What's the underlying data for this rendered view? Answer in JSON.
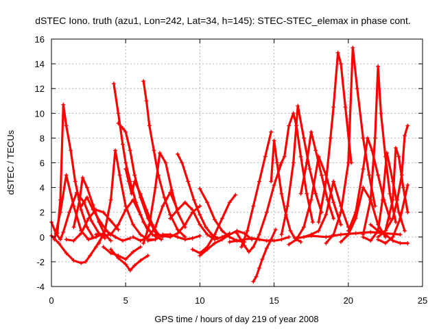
{
  "chart_data": {
    "type": "scatter",
    "title": "dSTEC Iono. truth (azu1, Lon=242, Lat=34, h=145): STEC-STEC_elemax in phase cont.",
    "xlabel": "GPS time / hours of day 219 of year 2008",
    "ylabel": "dSTEC  / TECUs",
    "xlim": [
      0,
      25
    ],
    "ylim": [
      -4,
      16
    ],
    "xticks": [
      0,
      5,
      10,
      15,
      20,
      25
    ],
    "yticks": [
      -4,
      -2,
      0,
      2,
      4,
      6,
      8,
      10,
      12,
      14,
      16
    ],
    "grid": true,
    "marker": "+",
    "color": "#ff0000",
    "series": [
      {
        "x": [
          0.0,
          0.3,
          0.6,
          0.8,
          1.2,
          1.7,
          2.2,
          2.7,
          3.2,
          3.6
        ],
        "y": [
          1.2,
          0.3,
          -0.2,
          0.4,
          2.0,
          3.6,
          2.8,
          1.3,
          0.3,
          -0.1
        ]
      },
      {
        "x": [
          0.4,
          0.6,
          0.8,
          1.0,
          1.3,
          1.6,
          2.0,
          2.4,
          2.8
        ],
        "y": [
          0.3,
          3.0,
          10.7,
          9.0,
          7.0,
          4.5,
          2.2,
          0.8,
          0.0
        ]
      },
      {
        "x": [
          0.0,
          0.5,
          1.0,
          1.5,
          2.0,
          2.3,
          2.6,
          3.0,
          3.5
        ],
        "y": [
          0.1,
          -0.5,
          -1.3,
          -1.9,
          -2.1,
          -2.0,
          -1.5,
          -0.8,
          0.2
        ]
      },
      {
        "x": [
          0.2,
          0.6,
          1.0,
          1.5,
          2.0,
          2.5,
          3.0,
          3.5
        ],
        "y": [
          -0.2,
          2.0,
          5.0,
          2.5,
          0.5,
          -0.2,
          0.0,
          0.3
        ]
      },
      {
        "x": [
          1.5,
          1.9,
          2.1,
          2.4,
          2.8,
          3.2,
          3.6,
          4.0
        ],
        "y": [
          0.8,
          3.0,
          4.8,
          4.0,
          2.6,
          1.2,
          0.2,
          -0.3
        ]
      },
      {
        "x": [
          2.0,
          2.4,
          2.8,
          3.3,
          3.8,
          4.3,
          4.8,
          5.3
        ],
        "y": [
          2.5,
          3.2,
          2.2,
          1.2,
          0.4,
          0.0,
          -0.3,
          -0.1
        ]
      },
      {
        "x": [
          1.0,
          1.5,
          2.0,
          2.5,
          3.0,
          3.5,
          4.0,
          4.5
        ],
        "y": [
          -0.2,
          -0.3,
          0.3,
          1.5,
          2.2,
          2.0,
          1.3,
          0.6
        ]
      },
      {
        "x": [
          3.0,
          3.5,
          4.0,
          4.5,
          5.0,
          5.5,
          6.0,
          6.5
        ],
        "y": [
          0.2,
          0.1,
          0.2,
          1.0,
          2.2,
          3.0,
          1.8,
          0.5
        ]
      },
      {
        "x": [
          3.2,
          3.6,
          4.0,
          4.3,
          4.6,
          5.0,
          5.5,
          6.0,
          6.5,
          7.0
        ],
        "y": [
          -0.5,
          0.5,
          3.0,
          7.0,
          5.0,
          2.5,
          1.0,
          0.2,
          -0.2,
          -0.2
        ]
      },
      {
        "x": [
          4.2,
          4.5,
          4.8,
          5.0,
          5.3,
          5.7,
          6.2,
          6.8,
          7.4
        ],
        "y": [
          12.4,
          10.0,
          7.5,
          6.0,
          4.5,
          2.8,
          1.2,
          0.2,
          -0.2
        ]
      },
      {
        "x": [
          4.5,
          4.8,
          5.0,
          5.3,
          5.6,
          6.0,
          6.5,
          7.0,
          7.5
        ],
        "y": [
          9.2,
          8.8,
          8.5,
          7.0,
          5.0,
          3.2,
          1.5,
          0.4,
          0.0
        ]
      },
      {
        "x": [
          5.0,
          5.2,
          5.4,
          5.6,
          6.0,
          6.4,
          6.8,
          7.2
        ],
        "y": [
          5.5,
          4.5,
          3.5,
          4.5,
          3.5,
          2.2,
          1.0,
          0.2
        ]
      },
      {
        "x": [
          4.0,
          4.5,
          5.0,
          5.3,
          5.6,
          6.0,
          6.5
        ],
        "y": [
          -1.0,
          -1.7,
          -2.2,
          -2.7,
          -2.3,
          -1.9,
          -1.5
        ]
      },
      {
        "x": [
          3.5,
          4.0,
          4.5,
          5.0,
          5.5,
          6.0
        ],
        "y": [
          -0.8,
          -1.3,
          -1.5,
          -1.8,
          -1.2,
          -0.8
        ]
      },
      {
        "x": [
          6.2,
          6.4,
          6.6,
          6.9,
          7.2,
          7.6,
          8.0,
          8.5,
          9.0
        ],
        "y": [
          12.6,
          11.0,
          9.0,
          7.0,
          5.0,
          3.2,
          1.8,
          0.6,
          0.0
        ]
      },
      {
        "x": [
          6.2,
          6.6,
          7.0,
          7.3,
          7.7,
          8.1,
          8.5,
          9.0
        ],
        "y": [
          -0.5,
          1.0,
          4.0,
          6.8,
          6.0,
          3.8,
          2.0,
          0.8
        ]
      },
      {
        "x": [
          5.5,
          6.0,
          6.5,
          7.0,
          7.5,
          8.0,
          8.5
        ],
        "y": [
          0.0,
          -0.3,
          0.0,
          0.8,
          2.5,
          3.6,
          2.2
        ]
      },
      {
        "x": [
          6.5,
          7.0,
          7.5,
          8.0,
          8.5,
          9.0,
          9.5,
          10.0
        ],
        "y": [
          -0.3,
          -0.2,
          0.2,
          0.2,
          0.0,
          -0.2,
          -0.1,
          0.1
        ]
      },
      {
        "x": [
          8.5,
          8.8,
          9.2,
          9.6,
          10.0,
          10.4,
          10.8,
          11.2
        ],
        "y": [
          6.7,
          6.0,
          4.5,
          3.0,
          1.8,
          0.8,
          0.2,
          -0.1
        ]
      },
      {
        "x": [
          7.0,
          7.5,
          8.0,
          8.5,
          9.0,
          9.5,
          10.0
        ],
        "y": [
          0.2,
          0.1,
          0.0,
          0.3,
          1.0,
          2.0,
          2.5
        ]
      },
      {
        "x": [
          8.0,
          8.5,
          9.0,
          9.5,
          10.0,
          10.5,
          11.0,
          11.5,
          12.0
        ],
        "y": [
          1.5,
          2.2,
          2.8,
          2.2,
          1.0,
          0.2,
          -0.2,
          0.0,
          0.3
        ]
      },
      {
        "x": [
          9.5,
          10.0,
          10.5,
          11.0,
          11.5,
          12.0,
          12.4
        ],
        "y": [
          -1.0,
          -1.3,
          -0.8,
          0.2,
          1.5,
          2.8,
          3.4
        ]
      },
      {
        "x": [
          10.0,
          10.5,
          11.0,
          11.5,
          12.0,
          12.5,
          13.0
        ],
        "y": [
          3.9,
          2.8,
          1.4,
          0.5,
          0.0,
          -0.3,
          -0.4
        ]
      },
      {
        "x": [
          10.0,
          10.5,
          11.0,
          11.5,
          12.0,
          12.5,
          13.0,
          13.5
        ],
        "y": [
          -1.5,
          -1.0,
          -0.5,
          -0.2,
          0.2,
          0.5,
          0.3,
          -0.2
        ]
      },
      {
        "x": [
          12.0,
          12.5,
          13.0,
          13.5,
          14.0,
          14.5,
          15.0,
          15.5,
          16.0
        ],
        "y": [
          -0.4,
          -0.3,
          -0.2,
          -0.1,
          -0.2,
          -0.3,
          -0.3,
          -0.2,
          0.0
        ]
      },
      {
        "x": [
          12.5,
          12.8,
          13.0,
          13.3,
          13.6,
          14.0,
          14.5,
          15.0,
          15.5
        ],
        "y": [
          0.3,
          -0.3,
          -0.7,
          -1.2,
          -0.8,
          0.2,
          2.0,
          4.2,
          6.0
        ]
      },
      {
        "x": [
          12.8,
          13.2,
          13.6,
          14.0,
          14.4,
          14.8
        ],
        "y": [
          -0.8,
          0.5,
          2.5,
          4.5,
          6.5,
          8.5
        ]
      },
      {
        "x": [
          13.6,
          13.8,
          14.0,
          14.2,
          14.5,
          14.8,
          15.1
        ],
        "y": [
          -3.6,
          -3.2,
          -2.5,
          -1.8,
          -0.9,
          -0.2,
          0.6
        ]
      },
      {
        "x": [
          14.8,
          15.0,
          15.2,
          15.5,
          15.8,
          16.1,
          16.4,
          16.8
        ],
        "y": [
          4.5,
          7.8,
          6.0,
          3.5,
          1.8,
          0.5,
          -0.1,
          -0.4
        ]
      },
      {
        "x": [
          15.4,
          15.7,
          16.0,
          16.3,
          16.5,
          16.8,
          17.2,
          17.6
        ],
        "y": [
          5.8,
          6.5,
          9.0,
          10.0,
          9.0,
          6.5,
          3.5,
          1.2
        ]
      },
      {
        "x": [
          15.5,
          15.9,
          16.3,
          16.6,
          17.0,
          17.4,
          17.8,
          18.2
        ],
        "y": [
          0.2,
          2.5,
          6.0,
          10.6,
          8.0,
          5.5,
          3.5,
          2.0
        ]
      },
      {
        "x": [
          16.0,
          16.5,
          17.0,
          17.5,
          18.0,
          18.5,
          19.0,
          19.5
        ],
        "y": [
          -0.6,
          -0.2,
          0.8,
          3.0,
          6.5,
          5.0,
          2.8,
          1.0
        ]
      },
      {
        "x": [
          16.8,
          17.2,
          17.5,
          17.8,
          18.2,
          18.6,
          19.0
        ],
        "y": [
          3.5,
          6.0,
          8.5,
          7.0,
          5.0,
          3.0,
          1.5
        ]
      },
      {
        "x": [
          17.0,
          17.5,
          18.0,
          18.5,
          19.0,
          19.5,
          20.0
        ],
        "y": [
          0.0,
          0.2,
          0.5,
          1.8,
          4.5,
          2.5,
          0.8
        ]
      },
      {
        "x": [
          18.0,
          18.5,
          18.8,
          19.0,
          19.3,
          19.5,
          19.8,
          20.2
        ],
        "y": [
          1.2,
          4.5,
          8.0,
          10.5,
          14.9,
          14.0,
          10.5,
          6.0
        ]
      },
      {
        "x": [
          18.5,
          19.0,
          19.5,
          20.0,
          20.3,
          20.6,
          21.0,
          21.4,
          21.8
        ],
        "y": [
          -0.5,
          0.2,
          2.0,
          6.0,
          15.3,
          12.0,
          8.0,
          5.0,
          2.5
        ]
      },
      {
        "x": [
          19.5,
          20.0,
          20.5,
          21.0,
          21.5,
          22.0,
          22.5
        ],
        "y": [
          -0.4,
          0.2,
          1.5,
          4.0,
          3.0,
          1.0,
          0.0
        ]
      },
      {
        "x": [
          20.0,
          20.5,
          21.0,
          21.3,
          21.6,
          22.0,
          22.4,
          22.8
        ],
        "y": [
          0.5,
          2.0,
          5.5,
          8.0,
          7.0,
          5.0,
          3.0,
          1.5
        ]
      },
      {
        "x": [
          21.0,
          21.5,
          21.8,
          22.0,
          22.2,
          22.5,
          22.8,
          23.2
        ],
        "y": [
          0.2,
          3.0,
          8.0,
          13.8,
          10.0,
          6.5,
          3.5,
          1.2
        ]
      },
      {
        "x": [
          21.0,
          21.5,
          22.0,
          22.3,
          22.6,
          23.0,
          23.4,
          23.8
        ],
        "y": [
          0.0,
          -0.3,
          0.5,
          3.0,
          6.8,
          4.5,
          2.0,
          0.5
        ]
      },
      {
        "x": [
          22.0,
          22.5,
          23.0,
          23.2,
          23.4,
          23.7,
          24.0
        ],
        "y": [
          0.0,
          0.5,
          3.0,
          7.2,
          6.5,
          4.0,
          2.0
        ]
      },
      {
        "x": [
          22.5,
          23.0,
          23.3,
          23.6,
          23.8,
          24.0
        ],
        "y": [
          0.5,
          1.5,
          3.0,
          5.0,
          8.2,
          9.0
        ]
      },
      {
        "x": [
          22.0,
          22.5,
          23.0,
          23.5,
          24.0
        ],
        "y": [
          -0.2,
          -0.5,
          0.0,
          1.5,
          4.2
        ]
      },
      {
        "x": [
          21.5,
          22.0,
          22.5,
          23.0,
          23.5,
          24.0
        ],
        "y": [
          1.0,
          0.5,
          0.2,
          -0.3,
          -0.5,
          -0.5
        ]
      },
      {
        "x": [
          16.5,
          17.5,
          18.5,
          19.5,
          20.5,
          21.5,
          22.5,
          23.5
        ],
        "y": [
          -0.1,
          0.1,
          0.0,
          0.2,
          0.3,
          0.4,
          0.3,
          0.2
        ]
      }
    ]
  }
}
